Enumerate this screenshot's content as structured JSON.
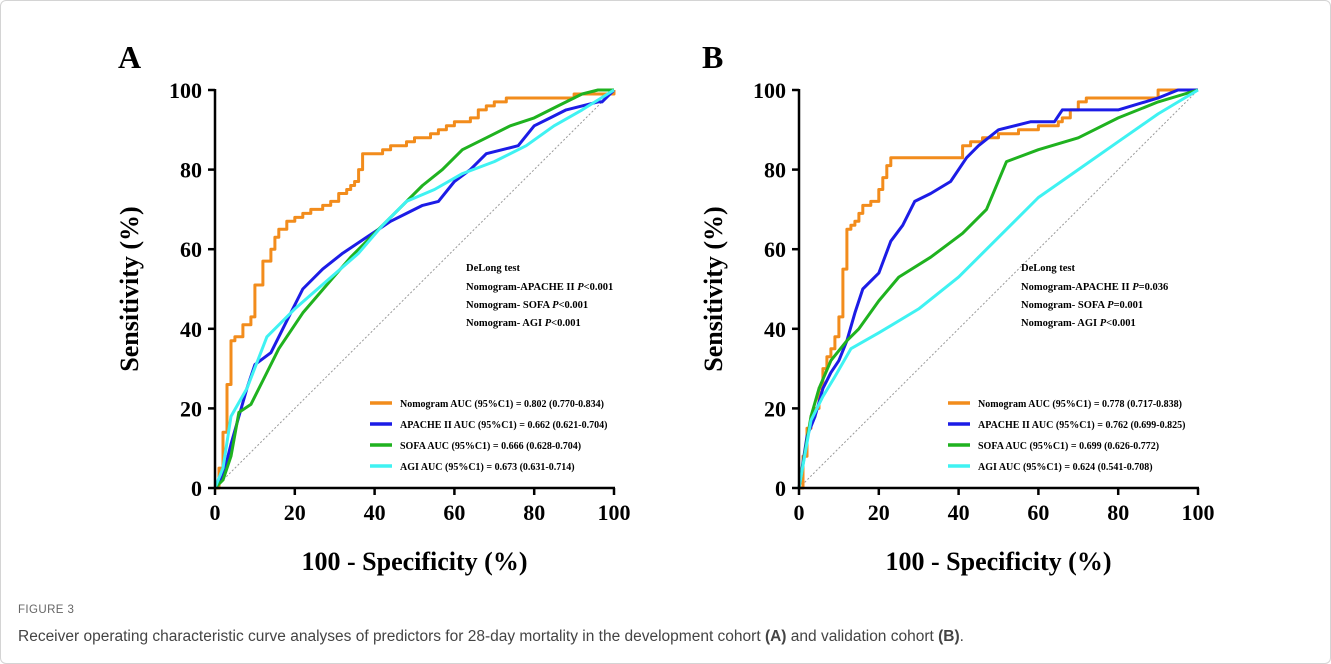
{
  "figure": {
    "label": "FIGURE 3",
    "caption_parts": [
      "Receiver operating characteristic curve analyses of predictors for 28-day mortality in the development cohort ",
      "(A)",
      " and validation cohort ",
      "(B)",
      "."
    ]
  },
  "colors": {
    "nomogram": "#F28C1C",
    "apache": "#1C1CE6",
    "sofa": "#1FB21F",
    "agi": "#3FF2F2",
    "reference": "#999999"
  },
  "chart_data": [
    {
      "type": "line",
      "panel": "A",
      "xlabel": "100 - Specificity (%)",
      "ylabel": "Sensitivity (%)",
      "xlim": [
        0,
        100
      ],
      "ylim": [
        0,
        100
      ],
      "xticks": [
        "0",
        "20",
        "40",
        "60",
        "80",
        "100"
      ],
      "yticks": [
        "0",
        "20",
        "40",
        "60",
        "80",
        "100"
      ],
      "grid": false,
      "legend_position": "bottom-right",
      "stats": {
        "title": "DeLong test",
        "lines": [
          {
            "prefix": "Nomogram-APACHE II ",
            "p": "P",
            "value": "<0.001"
          },
          {
            "prefix": "Nomogram- SOFA ",
            "p": "P",
            "value": "<0.001"
          },
          {
            "prefix": "Nomogram- AGI ",
            "p": "P",
            "value": "<0.001"
          }
        ]
      },
      "reference_line": true,
      "series": [
        {
          "name": "Nomogram AUC (95%C1) = 0.802 (0.770-0.834)",
          "color_key": "nomogram",
          "step": true,
          "x": [
            0,
            1,
            2,
            3,
            4,
            5,
            7,
            9,
            10,
            12,
            14,
            15,
            16,
            18,
            20,
            22,
            24,
            27,
            29,
            31,
            33,
            34,
            35,
            36,
            37,
            39,
            41,
            42,
            44,
            46,
            48,
            50,
            52,
            54,
            56,
            58,
            60,
            62,
            64,
            65,
            66,
            68,
            70,
            72,
            73,
            75,
            80,
            85,
            90,
            95,
            100
          ],
          "y": [
            0,
            5,
            14,
            26,
            37,
            38,
            41,
            43,
            51,
            57,
            60,
            63,
            65,
            67,
            68,
            69,
            70,
            71,
            72,
            74,
            75,
            76,
            77,
            80,
            84,
            84,
            84,
            85,
            86,
            86,
            87,
            88,
            88,
            89,
            90,
            91,
            92,
            92,
            93,
            93,
            95,
            96,
            97,
            97,
            98,
            98,
            98,
            98,
            99,
            99,
            100
          ]
        },
        {
          "name": "APACHE II AUC (95%C1) = 0.662 (0.621-0.704)",
          "color_key": "apache",
          "x": [
            0,
            2,
            4,
            6,
            8,
            10,
            14,
            18,
            22,
            27,
            32,
            38,
            44,
            48,
            52,
            56,
            60,
            64,
            68,
            72,
            76,
            80,
            84,
            88,
            92,
            96,
            97,
            100
          ],
          "y": [
            0,
            3,
            11,
            18,
            25,
            31,
            34,
            42,
            50,
            55,
            59,
            63,
            67,
            69,
            71,
            72,
            77,
            80,
            84,
            85,
            86,
            91,
            93,
            95,
            96,
            97,
            97,
            100
          ]
        },
        {
          "name": "SOFA AUC (95%C1) = 0.666 (0.628-0.704)",
          "color_key": "sofa",
          "x": [
            0,
            2,
            4,
            6,
            9,
            12,
            16,
            22,
            28,
            34,
            40,
            46,
            52,
            57,
            62,
            68,
            74,
            80,
            86,
            92,
            96,
            100
          ],
          "y": [
            0,
            2,
            8,
            19,
            21,
            27,
            35,
            44,
            51,
            58,
            64,
            70,
            76,
            80,
            85,
            88,
            91,
            93,
            96,
            99,
            100,
            100
          ]
        },
        {
          "name": "AGI AUC (95%C1) = 0.673 (0.631-0.714)",
          "color_key": "agi",
          "x": [
            0,
            2,
            4,
            8,
            13,
            20,
            28,
            36,
            42,
            48,
            55,
            62,
            70,
            78,
            85,
            92,
            100
          ],
          "y": [
            0,
            5,
            18,
            25,
            38,
            45,
            52,
            59,
            66,
            72,
            75,
            79,
            82,
            86,
            91,
            95,
            100
          ]
        }
      ]
    },
    {
      "type": "line",
      "panel": "B",
      "xlabel": "100 - Specificity (%)",
      "ylabel": "Sensitivity (%)",
      "xlim": [
        0,
        100
      ],
      "ylim": [
        0,
        100
      ],
      "xticks": [
        "0",
        "20",
        "40",
        "60",
        "80",
        "100"
      ],
      "yticks": [
        "0",
        "20",
        "40",
        "60",
        "80",
        "100"
      ],
      "grid": false,
      "legend_position": "bottom-right",
      "stats": {
        "title": "DeLong test",
        "lines": [
          {
            "prefix": "Nomogram-APACHE II ",
            "p": "P",
            "value": "=0.036"
          },
          {
            "prefix": "Nomogram- SOFA ",
            "p": "P",
            "value": "=0.001"
          },
          {
            "prefix": "Nomogram- AGI ",
            "p": "P",
            "value": "<0.001"
          }
        ]
      },
      "reference_line": true,
      "series": [
        {
          "name": "Nomogram AUC (95%C1) = 0.778 (0.717-0.838)",
          "color_key": "nomogram",
          "step": true,
          "x": [
            0,
            1,
            2,
            3,
            4,
            5,
            6,
            7,
            8,
            9,
            10,
            11,
            12,
            13,
            14,
            15,
            16,
            18,
            20,
            21,
            22,
            23,
            25,
            30,
            35,
            40,
            41,
            43,
            46,
            50,
            55,
            60,
            65,
            66,
            68,
            70,
            72,
            80,
            88,
            90,
            100
          ],
          "y": [
            0,
            8,
            15,
            18,
            20,
            25,
            30,
            33,
            35,
            38,
            43,
            55,
            65,
            66,
            67,
            69,
            71,
            72,
            75,
            78,
            81,
            83,
            83,
            83,
            83,
            83,
            86,
            87,
            88,
            89,
            90,
            91,
            92,
            93,
            95,
            97,
            98,
            98,
            98,
            100,
            100
          ]
        },
        {
          "name": "APACHE II AUC (95%C1) = 0.762 (0.699-0.825)",
          "color_key": "apache",
          "x": [
            0,
            2,
            4,
            6,
            8,
            10,
            12,
            14,
            16,
            20,
            23,
            26,
            29,
            33,
            38,
            42,
            45,
            50,
            58,
            64,
            66,
            70,
            80,
            90,
            95,
            100
          ],
          "y": [
            0,
            13,
            18,
            25,
            29,
            32,
            37,
            44,
            50,
            54,
            62,
            66,
            72,
            74,
            77,
            83,
            86,
            90,
            92,
            92,
            95,
            95,
            95,
            98,
            100,
            100
          ]
        },
        {
          "name": "SOFA AUC (95%C1) = 0.699 (0.626-0.772)",
          "color_key": "sofa",
          "x": [
            0,
            3,
            5,
            8,
            12,
            15,
            20,
            25,
            33,
            41,
            47,
            52,
            60,
            70,
            80,
            90,
            100
          ],
          "y": [
            0,
            18,
            25,
            32,
            37,
            40,
            47,
            53,
            58,
            64,
            70,
            82,
            85,
            88,
            93,
            97,
            100
          ]
        },
        {
          "name": "AGI AUC (95%C1) = 0.624 (0.541-0.708)",
          "color_key": "agi",
          "x": [
            0,
            3,
            6,
            9,
            13,
            20,
            30,
            40,
            50,
            60,
            70,
            80,
            90,
            100
          ],
          "y": [
            0,
            17,
            23,
            28,
            35,
            39,
            45,
            53,
            63,
            73,
            80,
            87,
            94,
            100
          ]
        }
      ]
    }
  ]
}
